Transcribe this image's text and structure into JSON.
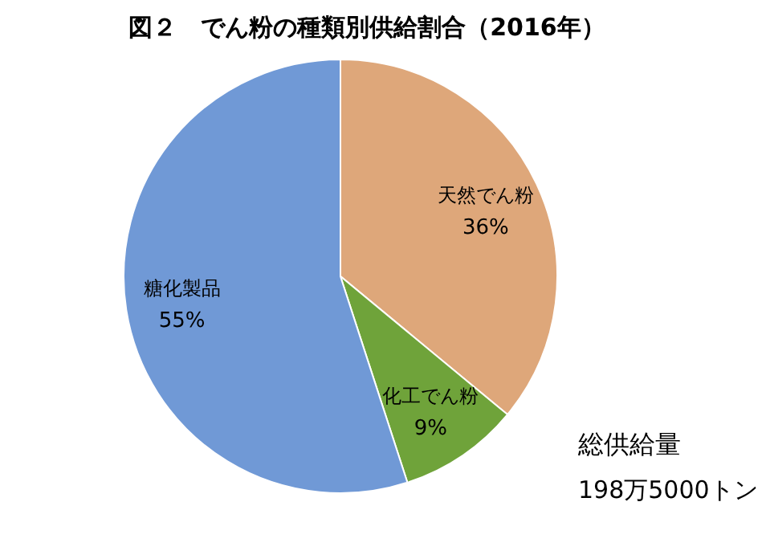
{
  "chart_data": {
    "type": "pie",
    "title": "図２　でん粉の種類別供給割合（2016年）",
    "categories": [
      "天然でん粉",
      "化工でん粉",
      "糖化製品"
    ],
    "values": [
      36,
      9,
      55
    ],
    "value_labels": [
      "36%",
      "9%",
      "55%"
    ],
    "colors": [
      "#dea77a",
      "#6fa33a",
      "#7099d6"
    ],
    "annotations": [
      "総供給量",
      "198万5000トン"
    ],
    "legend": false
  }
}
